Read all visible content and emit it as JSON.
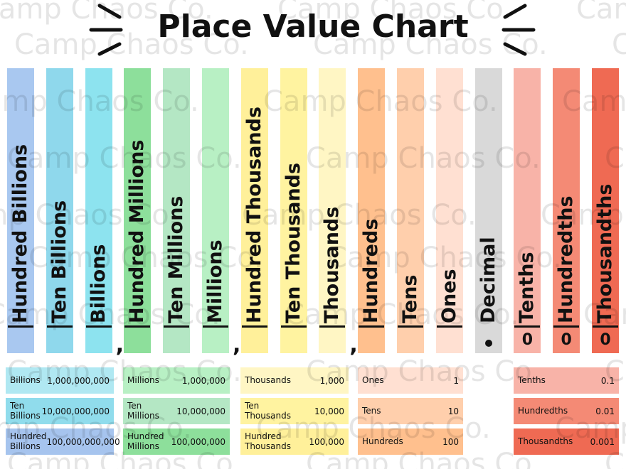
{
  "title": "Place Value Chart",
  "watermark": "Camp Chaos Co.",
  "separator": ",",
  "columns": [
    {
      "label": "Hundred Billions",
      "color": "#a9c8f0"
    },
    {
      "label": "Ten Billions",
      "color": "#8fd8ec"
    },
    {
      "label": "Billions",
      "color": "#8de3ef"
    },
    {
      "label": "Hundred Millions",
      "color": "#8ddf9b"
    },
    {
      "label": "Ten Millions",
      "color": "#b4e7c4"
    },
    {
      "label": "Millions",
      "color": "#b8f0c4"
    },
    {
      "label": "Hundred Thousands",
      "color": "#fff09a"
    },
    {
      "label": "Ten Thousands",
      "color": "#fff3a0"
    },
    {
      "label": "Thousands",
      "color": "#fff6c4"
    },
    {
      "label": "Hundreds",
      "color": "#ffc08e"
    },
    {
      "label": "Tens",
      "color": "#ffcfac"
    },
    {
      "label": "Ones",
      "color": "#ffe0d2"
    },
    {
      "label": "Decimal",
      "color": "#d9d9d9"
    },
    {
      "label": "Tenths",
      "color": "#f8b3a8",
      "digit": "0"
    },
    {
      "label": "Hundredths",
      "color": "#f48a75",
      "digit": "0"
    },
    {
      "label": "Thousandths",
      "color": "#ef6a53",
      "digit": "0"
    }
  ],
  "tables": [
    {
      "rows": [
        {
          "label": "Billions",
          "value": "1,000,000,000",
          "color": "#b0e8f2"
        },
        {
          "label": "Ten Billions",
          "value": "10,000,000,000",
          "color": "#90dcec"
        },
        {
          "label": "Hundred Billions",
          "value": "100,000,000,000",
          "color": "#a6c4ee"
        }
      ]
    },
    {
      "rows": [
        {
          "label": "Millions",
          "value": "1,000,000",
          "color": "#b8f0c4"
        },
        {
          "label": "Ten Millions",
          "value": "10,000,000",
          "color": "#b4e7c4"
        },
        {
          "label": "Hundred Millions",
          "value": "100,000,000",
          "color": "#8ddf9b"
        }
      ]
    },
    {
      "rows": [
        {
          "label": "Thousands",
          "value": "1,000",
          "color": "#fff6c4"
        },
        {
          "label": "Ten Thousands",
          "value": "10,000",
          "color": "#fff3a0"
        },
        {
          "label": "Hundred Thousands",
          "value": "100,000",
          "color": "#fff09a"
        }
      ]
    },
    {
      "rows": [
        {
          "label": "Ones",
          "value": "1",
          "color": "#ffe0d2"
        },
        {
          "label": "Tens",
          "value": "10",
          "color": "#ffcfac"
        },
        {
          "label": "Hundreds",
          "value": "100",
          "color": "#ffc08e"
        }
      ]
    },
    {
      "rows": [
        {
          "label": "Tenths",
          "value": "0.1",
          "color": "#f8b3a8"
        },
        {
          "label": "Hundredths",
          "value": "0.01",
          "color": "#f48a75"
        },
        {
          "label": "Thousandths",
          "value": "0.001",
          "color": "#ef6a53"
        }
      ]
    }
  ]
}
